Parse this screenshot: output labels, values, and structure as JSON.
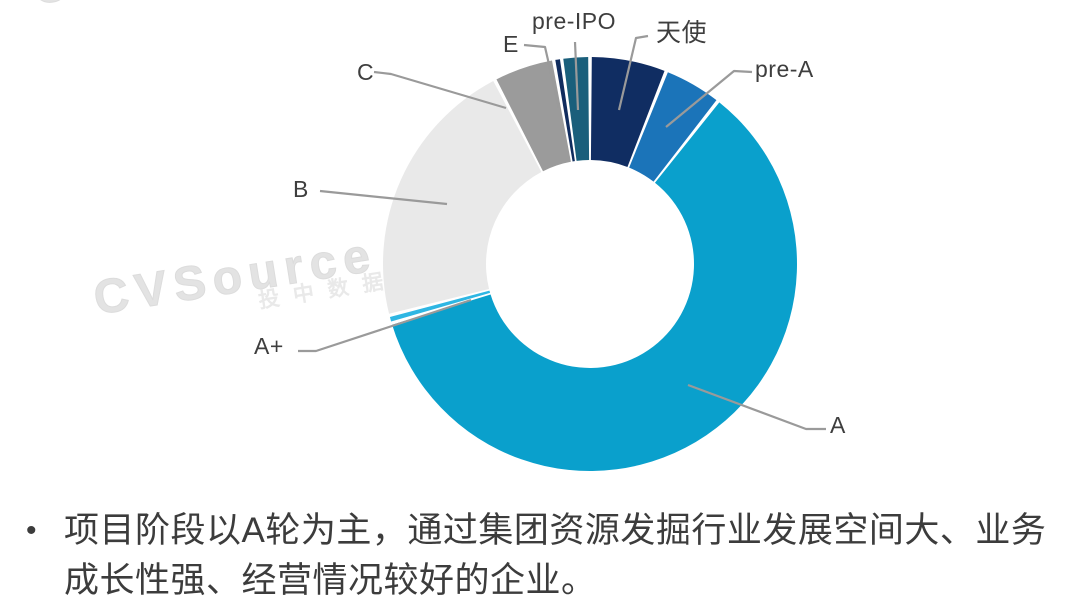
{
  "watermark": {
    "brand": "CVSource",
    "caption": "投中数据"
  },
  "chart_data": {
    "type": "pie",
    "subtype": "donut",
    "title": "",
    "legend": "none",
    "values_are": "percent",
    "direction": "clockwise",
    "start_angle_deg": 0,
    "inner_radius_ratio": 0.5,
    "slices": [
      {
        "label": "天使",
        "value": 6.0,
        "color": "#102d62"
      },
      {
        "label": "pre-A",
        "value": 4.6,
        "color": "#1b74b9"
      },
      {
        "label": "A",
        "value": 59.8,
        "color": "#0aa0cc"
      },
      {
        "label": "A+",
        "value": 0.6,
        "color": "#2eb6e3"
      },
      {
        "label": "B",
        "value": 21.4,
        "color": "#e9e9e9"
      },
      {
        "label": "C",
        "value": 4.8,
        "color": "#9b9b9b"
      },
      {
        "label": "E",
        "value": 0.6,
        "color": "#102c5e"
      },
      {
        "label": "pre-IPO",
        "value": 2.2,
        "color": "#1a5f7b"
      }
    ],
    "leader_line_color": "#9a9a9a",
    "label_color": "#3e3e3e"
  },
  "note": {
    "bullet": "•",
    "text": "项目阶段以A轮为主，通过集团资源发掘行业发展空间大、业务成长性强、经营情况较好的企业。"
  }
}
